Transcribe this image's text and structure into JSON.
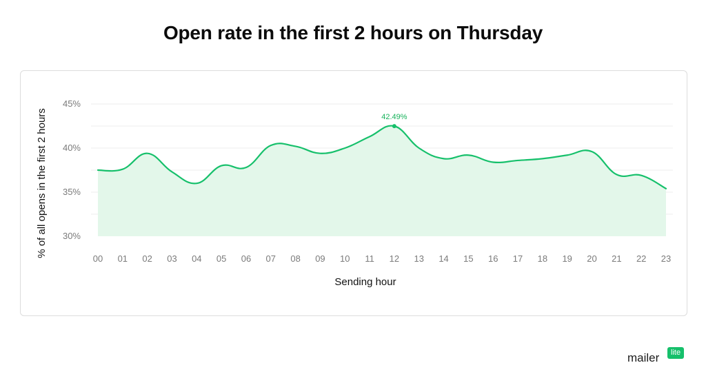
{
  "title": "Open rate in the first 2 hours on Thursday",
  "colors": {
    "line": "#16c06b",
    "fill": "#e3f7ea",
    "grid": "#ececec",
    "peak_label": "#16b25a"
  },
  "chart_data": {
    "type": "area",
    "title": "Open rate in the first 2 hours on Thursday",
    "xlabel": "Sending hour",
    "ylabel": "% of all opens in the first 2 hours",
    "categories": [
      "00",
      "01",
      "02",
      "03",
      "04",
      "05",
      "06",
      "07",
      "08",
      "09",
      "10",
      "11",
      "12",
      "13",
      "14",
      "15",
      "16",
      "17",
      "18",
      "19",
      "20",
      "21",
      "22",
      "23"
    ],
    "values": [
      37.5,
      37.6,
      39.4,
      37.3,
      36.0,
      38.0,
      37.8,
      40.3,
      40.2,
      39.4,
      40.0,
      41.3,
      42.49,
      40.0,
      38.8,
      39.2,
      38.4,
      38.6,
      38.8,
      39.2,
      39.6,
      37.0,
      36.9,
      35.4
    ],
    "ylim": [
      30,
      45
    ],
    "yticks": [
      30,
      35,
      40,
      45
    ],
    "ytick_labels": [
      "30%",
      "35%",
      "40%",
      "45%"
    ],
    "grid": true,
    "annotation": {
      "category": "12",
      "value": 42.49,
      "text": "42.49%"
    }
  },
  "logo": {
    "word": "mailer",
    "badge": "lite"
  }
}
